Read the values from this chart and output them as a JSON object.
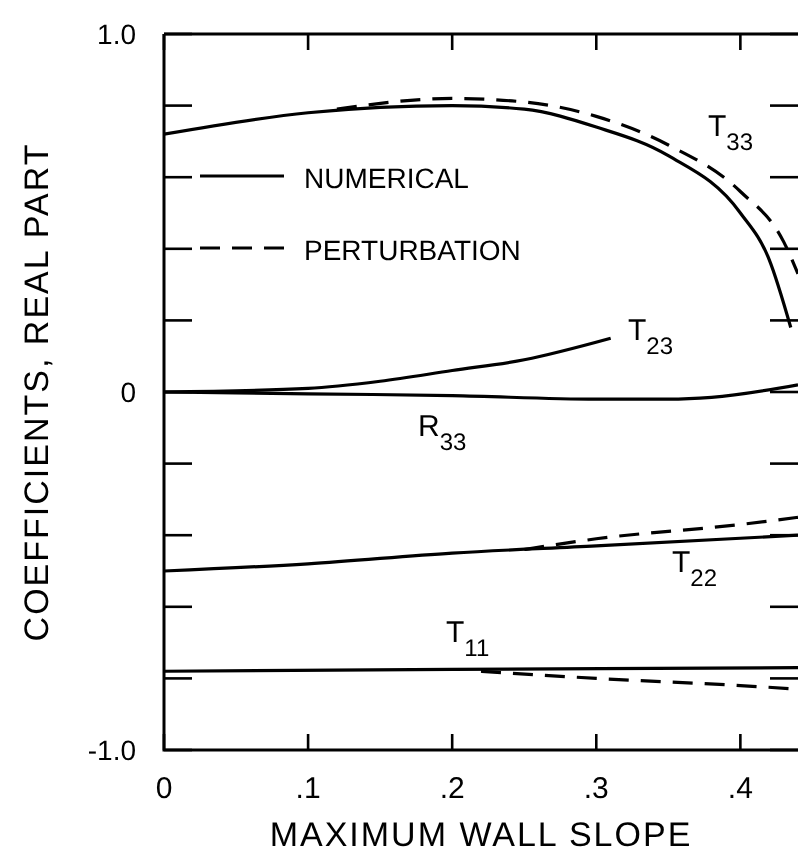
{
  "chart_data": {
    "type": "line",
    "xlabel": "MAXIMUM WALL SLOPE",
    "ylabel": "COEFFICIENTS, REAL PART",
    "xlim": [
      0,
      0.44
    ],
    "ylim": [
      -1,
      1
    ],
    "xticks": [
      {
        "value": 0,
        "label": "0"
      },
      {
        "value": 0.1,
        "label": ".1"
      },
      {
        "value": 0.2,
        "label": ".2"
      },
      {
        "value": 0.3,
        "label": ".3"
      },
      {
        "value": 0.4,
        "label": ".4"
      }
    ],
    "yticks": [
      {
        "value": -1,
        "label": "-1.0"
      },
      {
        "value": -0.8,
        "label": null
      },
      {
        "value": -0.6,
        "label": null
      },
      {
        "value": -0.4,
        "label": null
      },
      {
        "value": -0.2,
        "label": null
      },
      0,
      {
        "value": 0.2,
        "label": null
      },
      {
        "value": 0.4,
        "label": null
      },
      {
        "value": 0.6,
        "label": null
      },
      {
        "value": 0.8,
        "label": null
      },
      {
        "value": 1,
        "label": "1.0"
      }
    ],
    "grid": false,
    "legend": "top left",
    "series": [
      {
        "name": "NUMERICAL",
        "color": "#000000",
        "line_style": "solid",
        "x": [
          0,
          0.1,
          0.2,
          0.25,
          0.3,
          0.35,
          0.4,
          0.42,
          0.435
        ],
        "values": [
          0.72,
          0.78,
          0.8,
          0.79,
          0.74,
          0.66,
          0.5,
          0.37,
          0.18
        ]
      },
      {
        "name": "PERTURBATION",
        "color": "#000000",
        "line_style": "dashed",
        "x": [
          0.12,
          0.2,
          0.25,
          0.3,
          0.35,
          0.4,
          0.43,
          0.44
        ],
        "values": [
          0.79,
          0.82,
          0.81,
          0.77,
          0.69,
          0.56,
          0.42,
          0.33
        ]
      },
      {
        "color": "#000000",
        "line_style": "solid",
        "x": [
          0,
          0.1,
          0.15,
          0.2,
          0.25,
          0.31
        ],
        "values": [
          0,
          0.01,
          0.03,
          0.06,
          0.09,
          0.15
        ]
      },
      {
        "color": "#000000",
        "line_style": "solid",
        "x": [
          0,
          0.1,
          0.2,
          0.3,
          0.35,
          0.38,
          0.44
        ],
        "values": [
          0,
          -0.005,
          -0.01,
          -0.02,
          -0.02,
          -0.015,
          0.02
        ]
      },
      {
        "color": "#000000",
        "line_style": "solid",
        "x": [
          0,
          0.1,
          0.2,
          0.3,
          0.44
        ],
        "values": [
          -0.5,
          -0.48,
          -0.45,
          -0.43,
          -0.4
        ]
      },
      {
        "color": "#000000",
        "line_style": "dashed",
        "x": [
          0.25,
          0.3,
          0.4,
          0.44
        ],
        "values": [
          -0.44,
          -0.41,
          -0.37,
          -0.35
        ]
      },
      {
        "color": "#000000",
        "line_style": "solid",
        "x": [
          0,
          0.2,
          0.44
        ],
        "values": [
          -0.78,
          -0.775,
          -0.77
        ]
      },
      {
        "color": "#000000",
        "line_style": "dashed",
        "x": [
          0.22,
          0.3,
          0.4,
          0.44
        ],
        "values": [
          -0.78,
          -0.8,
          -0.82,
          -0.83
        ]
      }
    ],
    "annotations": [
      "T$_{33}$",
      "T$_{23}$",
      "R$_{33}$",
      "T$_{22}$",
      "T$_{11}$"
    ]
  }
}
